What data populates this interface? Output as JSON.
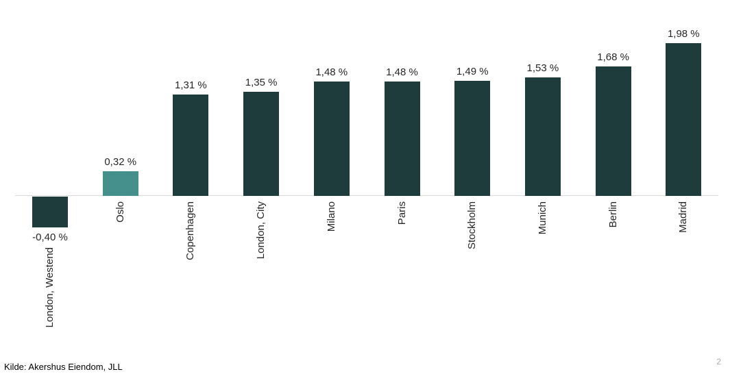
{
  "chart_data": {
    "type": "bar",
    "categories": [
      "London, Westend",
      "Oslo",
      "Copenhagen",
      "London, City",
      "Milano",
      "Paris",
      "Stockholm",
      "Munich",
      "Berlin",
      "Madrid"
    ],
    "values": [
      -0.4,
      0.32,
      1.31,
      1.35,
      1.48,
      1.48,
      1.49,
      1.53,
      1.68,
      1.98
    ],
    "value_labels": [
      "-0,40 %",
      "0,32 %",
      "1,31 %",
      "1,35 %",
      "1,48 %",
      "1,48 %",
      "1,49 %",
      "1,53 %",
      "1,68 %",
      "1,98 %"
    ],
    "title": "",
    "xlabel": "",
    "ylabel": "",
    "unit": "%",
    "baseline": 0,
    "grid": false,
    "legend": false,
    "label_rotation": 90,
    "bar_color": "#1e3c3c",
    "highlight_color": "#45908c",
    "highlight_index": 1,
    "axis_line_color": "#d9d9d9",
    "label_color": "#262626"
  },
  "footer": {
    "source": "Kilde: Akershus Eiendom, JLL",
    "page_number": "2"
  }
}
